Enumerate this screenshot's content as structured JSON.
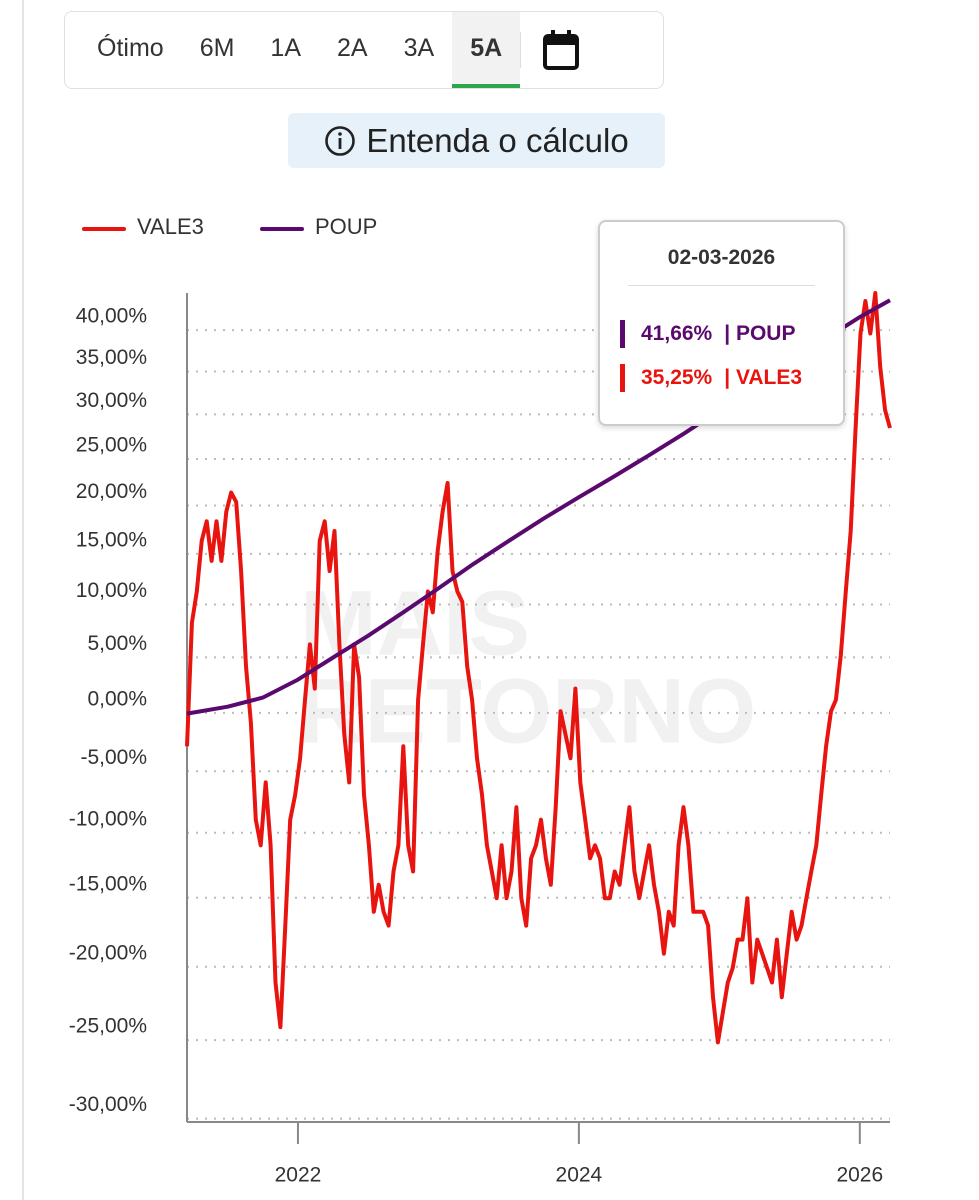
{
  "periods": [
    "Ótimo",
    "6M",
    "1A",
    "2A",
    "3A",
    "5A"
  ],
  "info_button": "Entenda o cálculo",
  "chart_data": {
    "type": "line",
    "watermark": [
      "MAIS",
      "RETORNO"
    ],
    "yscale": "log1p",
    "xlim": [
      2021.21,
      2026.215
    ],
    "xticks": [
      2022,
      2024,
      2026
    ],
    "ylim": [
      -31,
      43
    ],
    "yticks": [
      {
        "value": 40,
        "label": "40,00%"
      },
      {
        "value": 35,
        "label": "35,00%"
      },
      {
        "value": 30,
        "label": "30,00%"
      },
      {
        "value": 25,
        "label": "25,00%"
      },
      {
        "value": 20,
        "label": "20,00%"
      },
      {
        "value": 15,
        "label": "15,00%"
      },
      {
        "value": 10,
        "label": "10,00%"
      },
      {
        "value": 5,
        "label": "5,00%"
      },
      {
        "value": 0,
        "label": "0,00%"
      },
      {
        "value": -5,
        "label": "-5,00%"
      },
      {
        "value": -10,
        "label": "-10,00%"
      },
      {
        "value": -15,
        "label": "-15,00%"
      },
      {
        "value": -20,
        "label": "-20,00%"
      },
      {
        "value": -25,
        "label": "-25,00%"
      },
      {
        "value": -30,
        "label": "-30,00%"
      }
    ],
    "grid": true,
    "series": [
      {
        "name": "VALE3",
        "color": "#e8140f",
        "x": [
          2021.21,
          2021.245,
          2021.28,
          2021.315,
          2021.35,
          2021.385,
          2021.42,
          2021.455,
          2021.49,
          2021.525,
          2021.56,
          2021.595,
          2021.63,
          2021.665,
          2021.7,
          2021.735,
          2021.77,
          2021.805,
          2021.84,
          2021.875,
          2021.91,
          2021.945,
          2021.98,
          2022.015,
          2022.05,
          2022.085,
          2022.12,
          2022.155,
          2022.19,
          2022.225,
          2022.26,
          2022.295,
          2022.33,
          2022.365,
          2022.4,
          2022.435,
          2022.47,
          2022.505,
          2022.54,
          2022.575,
          2022.61,
          2022.645,
          2022.68,
          2022.715,
          2022.75,
          2022.785,
          2022.82,
          2022.855,
          2022.89,
          2022.925,
          2022.96,
          2022.995,
          2023.03,
          2023.065,
          2023.1,
          2023.135,
          2023.17,
          2023.205,
          2023.24,
          2023.275,
          2023.31,
          2023.345,
          2023.38,
          2023.415,
          2023.45,
          2023.485,
          2023.52,
          2023.555,
          2023.59,
          2023.625,
          2023.66,
          2023.695,
          2023.73,
          2023.765,
          2023.8,
          2023.835,
          2023.87,
          2023.905,
          2023.94,
          2023.975,
          2024.01,
          2024.045,
          2024.08,
          2024.115,
          2024.15,
          2024.185,
          2024.22,
          2024.255,
          2024.29,
          2024.325,
          2024.36,
          2024.395,
          2024.43,
          2024.465,
          2024.5,
          2024.535,
          2024.57,
          2024.605,
          2024.64,
          2024.675,
          2024.71,
          2024.745,
          2024.78,
          2024.815,
          2024.85,
          2024.885,
          2024.92,
          2024.955,
          2024.99,
          2025.025,
          2025.06,
          2025.095,
          2025.13,
          2025.165,
          2025.2,
          2025.235,
          2025.27,
          2025.305,
          2025.34,
          2025.375,
          2025.41,
          2025.445,
          2025.48,
          2025.515,
          2025.55,
          2025.585,
          2025.62,
          2025.655,
          2025.69,
          2025.725,
          2025.76,
          2025.795,
          2025.83,
          2025.865,
          2025.9,
          2025.935,
          2025.97,
          2026.005,
          2026.04,
          2026.075,
          2026.11,
          2026.145,
          2026.18,
          2026.215
        ],
        "values": [
          -4,
          7,
          10,
          15,
          17,
          13,
          17,
          13,
          18,
          20,
          19,
          12,
          3,
          -2,
          -10,
          -12,
          -7,
          -12,
          -22,
          -25,
          -18,
          -10,
          -8,
          -5,
          0,
          5,
          1,
          15,
          17,
          12,
          16,
          5,
          -3,
          -7,
          5,
          2,
          -8,
          -12,
          -17,
          -15,
          -17,
          -18,
          -14,
          -12,
          -4,
          -12,
          -14,
          0,
          5,
          10,
          8,
          14,
          18,
          21,
          12,
          10,
          9,
          3,
          0,
          -5,
          -8,
          -12,
          -14,
          -16,
          -12,
          -16,
          -14,
          -9,
          -16,
          -18,
          -13,
          -12,
          -10,
          -13,
          -15,
          -9,
          -1,
          -3,
          -5,
          1,
          -7,
          -10,
          -13,
          -12,
          -13,
          -16,
          -16,
          -14,
          -15,
          -12,
          -9,
          -14,
          -16,
          -14,
          -12,
          -15,
          -17,
          -20,
          -17,
          -18,
          -12,
          -9,
          -12,
          -17,
          -17,
          -17,
          -18,
          -23,
          -26,
          -24,
          -22,
          -21,
          -19,
          -19,
          -16,
          -22,
          -19,
          -20,
          -21,
          -22,
          -19,
          -23,
          -20,
          -17,
          -19,
          -18,
          -16,
          -14,
          -12,
          -8,
          -4,
          -1,
          0,
          4,
          10,
          16,
          27,
          38,
          42,
          38,
          43,
          34,
          29,
          27
        ]
      },
      {
        "name": "POUP",
        "color": "#5a0a6e",
        "x": [
          2021.21,
          2021.5,
          2021.75,
          2022.0,
          2022.25,
          2022.5,
          2022.75,
          2023.0,
          2023.25,
          2023.5,
          2023.75,
          2024.0,
          2024.25,
          2024.5,
          2024.75,
          2025.0,
          2025.25,
          2025.5,
          2025.75,
          2026.0,
          2026.17,
          2026.215
        ],
        "values": [
          -1.2,
          -0.6,
          0.2,
          1.8,
          3.8,
          5.8,
          8.0,
          10.3,
          12.7,
          15.0,
          17.3,
          19.5,
          21.7,
          24.0,
          26.4,
          29.0,
          31.7,
          34.5,
          37.3,
          40.0,
          41.66,
          42.1
        ]
      }
    ],
    "tooltip": {
      "date": "02-03-2026",
      "items": [
        {
          "value": "41,66%",
          "name": "| POUP",
          "color": "#5a0a6e"
        },
        {
          "value": "35,25%",
          "name": "| VALE3",
          "color": "#e8140f"
        }
      ]
    }
  }
}
